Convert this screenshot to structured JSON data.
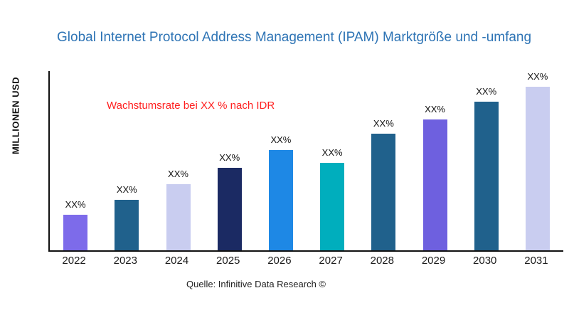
{
  "header": {
    "title": "Global Internet Protocol Address Management (IPAM) Marktgröße und -umfang"
  },
  "annotation": {
    "text": "Wachstumsrate bei XX % nach IDR",
    "color": "#FF1F1F"
  },
  "axes": {
    "y_label": "MILLIONEN USD"
  },
  "footer": {
    "source": "Quelle: Infinitive Data Research ©"
  },
  "chart_data": {
    "type": "bar",
    "title": "Global Internet Protocol Address Management (IPAM) Marktgröße und -umfang",
    "categories": [
      "2022",
      "2023",
      "2024",
      "2025",
      "2026",
      "2027",
      "2028",
      "2029",
      "2030",
      "2031"
    ],
    "values": [
      20,
      28,
      37,
      46,
      56,
      49,
      65,
      73,
      83,
      92
    ],
    "bar_labels": [
      "XX%",
      "XX%",
      "XX%",
      "XX%",
      "XX%",
      "XX%",
      "XX%",
      "XX%",
      "XX%",
      "XX%"
    ],
    "bar_colors": [
      "#7D6BEA",
      "#20618C",
      "#C9CDF0",
      "#1B2A63",
      "#1E88E5",
      "#00AEBD",
      "#20618C",
      "#6E60DF",
      "#20618C",
      "#C9CDF0"
    ],
    "xlabel": "",
    "ylabel": "MILLIONEN USD",
    "ylim": [
      0,
      100
    ],
    "grid": false,
    "legend": "none",
    "annotation": "Wachstumsrate bei XX % nach IDR"
  }
}
